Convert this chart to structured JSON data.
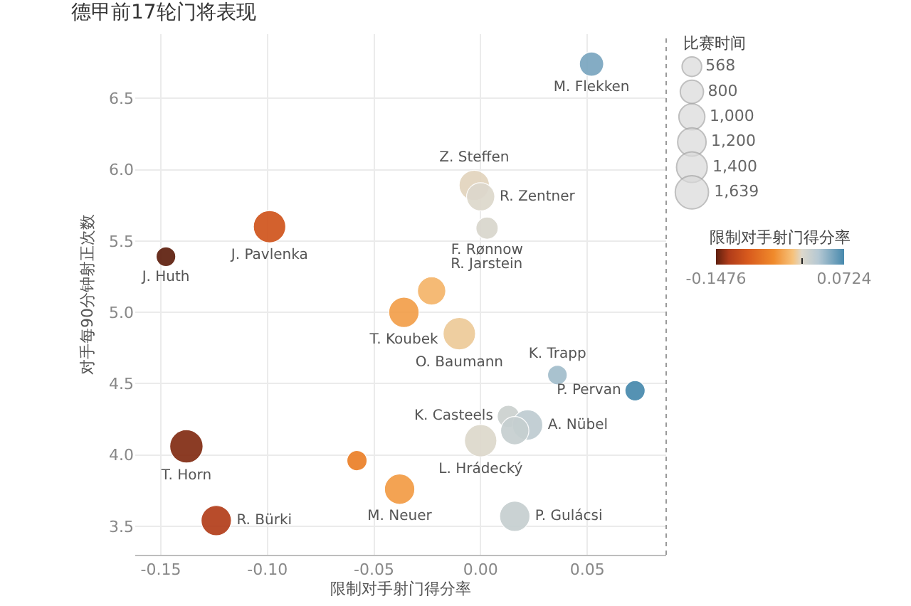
{
  "chart_data": {
    "type": "bubble",
    "title": "德甲前17轮门将表现",
    "xlabel": "限制对手射门得分率",
    "ylabel": "对手每90分钟射正次数",
    "x": [
      0.052,
      -0.003,
      0.0,
      0.003,
      -0.099,
      -0.1476,
      -0.023,
      -0.036,
      -0.01,
      0.036,
      0.0724,
      0.013,
      0.022,
      0.016,
      0.0,
      -0.058,
      -0.038,
      0.016,
      -0.138,
      -0.124
    ],
    "values": [
      6.74,
      5.89,
      5.81,
      5.59,
      5.6,
      5.39,
      5.15,
      5.0,
      4.85,
      4.56,
      4.45,
      4.27,
      4.21,
      4.17,
      4.1,
      3.96,
      3.76,
      3.57,
      4.06,
      3.54
    ],
    "sizes": [
      870,
      1360,
      1180,
      730,
      1550,
      568,
      1180,
      1360,
      1550,
      568,
      600,
      730,
      1360,
      1180,
      1550,
      600,
      1360,
      1360,
      1639,
      1360
    ],
    "cvalues": [
      0.052,
      -0.003,
      0.0,
      0.003,
      -0.099,
      -0.1476,
      -0.023,
      -0.036,
      -0.01,
      0.036,
      0.0724,
      0.013,
      0.022,
      0.016,
      0.0,
      -0.058,
      -0.038,
      0.016,
      -0.138,
      -0.124
    ],
    "value_labels": [
      "M. Flekken",
      "Z. Steffen",
      "R. Zentner",
      "F. Rønnow",
      "J. Pavlenka",
      "J. Huth",
      "R. Jarstein",
      "T. Koubek",
      "O. Baumann",
      "K. Trapp",
      "P. Pervan",
      "K. Casteels",
      "A. Nübel",
      null,
      "L. Hrádecký",
      null,
      "M. Neuer",
      "P. Gulácsi",
      "T. Horn",
      "R. Bürki"
    ],
    "size_legend": [
      568,
      800,
      {
        "value": 1000,
        "label": "1,000"
      },
      {
        "value": 1200,
        "label": "1,200"
      },
      {
        "value": 1400,
        "label": "1,400"
      },
      {
        "value": 1639,
        "label": "1,639"
      }
    ],
    "legend_title": "比赛时间",
    "clabel": "限制对手射门得分率",
    "clim": [
      -0.1476,
      0.0724
    ],
    "cticks": [
      -0.1476,
      {
        "value": 0,
        "label": null
      },
      0.0724
    ],
    "xlim": [
      -0.162,
      0.087
    ],
    "xticks": [
      -0.15,
      {
        "value": -0.1,
        "label": "-0.10"
      },
      -0.05,
      {
        "value": 0,
        "label": "0.00"
      },
      0.05
    ],
    "ylim": [
      3.3,
      6.95
    ],
    "yticks": [
      3.5,
      {
        "value": 4,
        "label": "4.0"
      },
      4.5,
      {
        "value": 5,
        "label": "5.0"
      },
      5.5,
      {
        "value": 6,
        "label": "6.0"
      },
      6.5
    ],
    "grid": true,
    "marker": "circle"
  }
}
